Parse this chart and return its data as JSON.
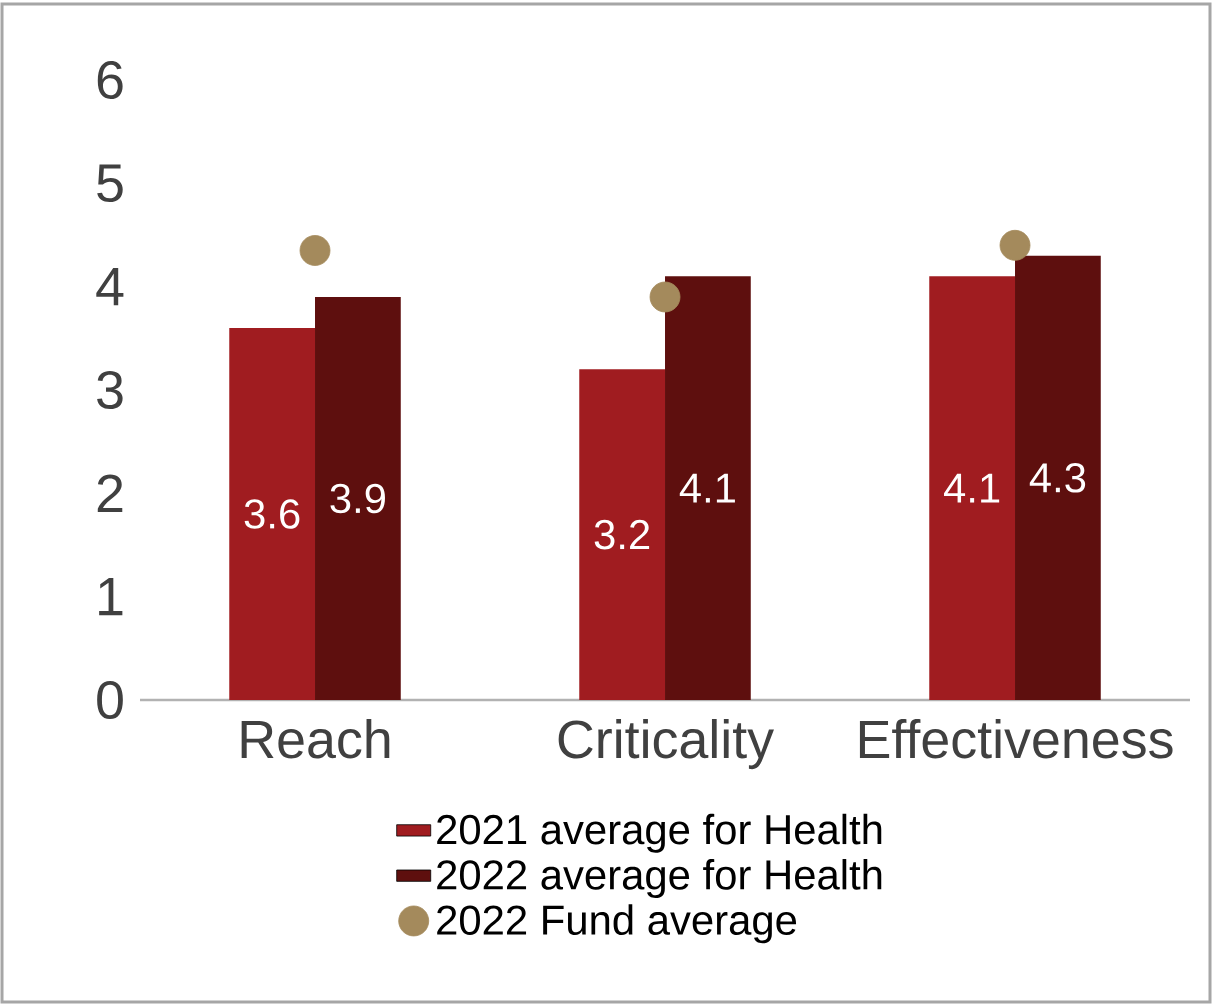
{
  "chart_data": {
    "type": "bar",
    "categories": [
      "Reach",
      "Criticality",
      "Effectiveness"
    ],
    "series": [
      {
        "name": "2021 average for Health",
        "color": "#a01c20",
        "values": [
          3.6,
          3.2,
          4.1
        ],
        "value_labels": [
          "3.6",
          "3.2",
          "4.1"
        ]
      },
      {
        "name": "2022 average for Health",
        "color": "#5e0f0e",
        "values": [
          3.9,
          4.1,
          4.3
        ],
        "value_labels": [
          "3.9",
          "4.1",
          "4.3"
        ]
      },
      {
        "name": "2022 Fund average",
        "type": "scatter",
        "color": "#a48a5c",
        "marker": "circle",
        "values": [
          4.35,
          3.9,
          4.4
        ]
      }
    ],
    "ylim": [
      0,
      6
    ],
    "yticks": [
      0,
      1,
      2,
      3,
      4,
      5,
      6
    ],
    "grid": false,
    "legend": "bottom"
  }
}
